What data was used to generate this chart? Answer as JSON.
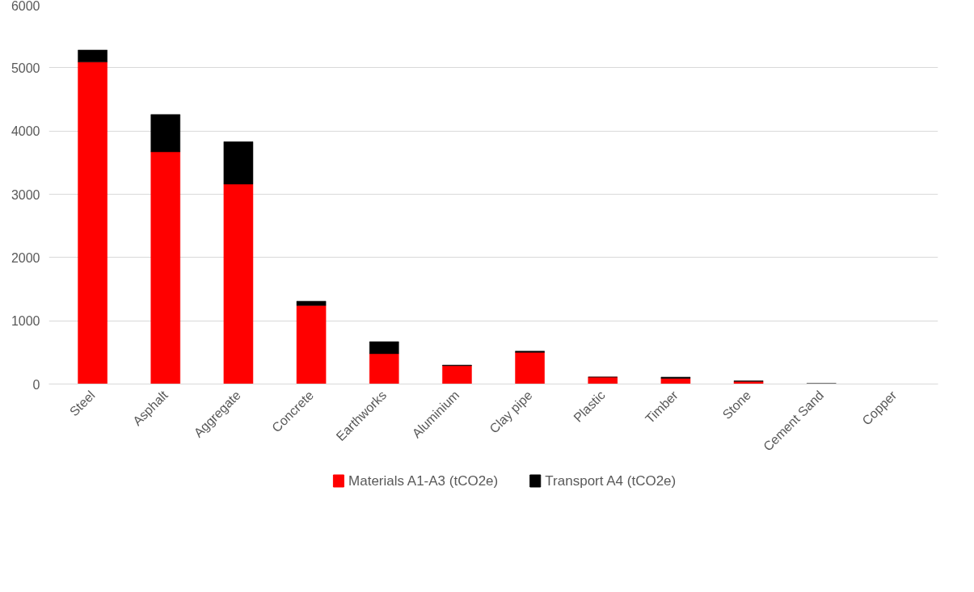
{
  "chart_data": {
    "type": "bar",
    "stacked": true,
    "categories": [
      "Steel",
      "Asphalt",
      "Aggregate",
      "Concrete",
      "Earthworks",
      "Aluminium",
      "Clay pipe",
      "Plastic",
      "Timber",
      "Stone",
      "Cement Sand",
      "Copper"
    ],
    "series": [
      {
        "name": "Materials A1-A3 (tCO2e)",
        "color": "#ff0000",
        "values": [
          5090,
          3670,
          3160,
          1240,
          480,
          290,
          500,
          110,
          90,
          40,
          null,
          0
        ]
      },
      {
        "name": "Transport A4 (tCO2e)",
        "color": "#000000",
        "values": [
          190,
          590,
          670,
          70,
          190,
          10,
          20,
          0,
          20,
          10,
          10,
          0
        ]
      }
    ],
    "ylim": [
      0,
      6000
    ],
    "yticks": [
      0,
      1000,
      2000,
      3000,
      4000,
      5000,
      6000
    ],
    "grid": "y",
    "legend": "bottom"
  }
}
